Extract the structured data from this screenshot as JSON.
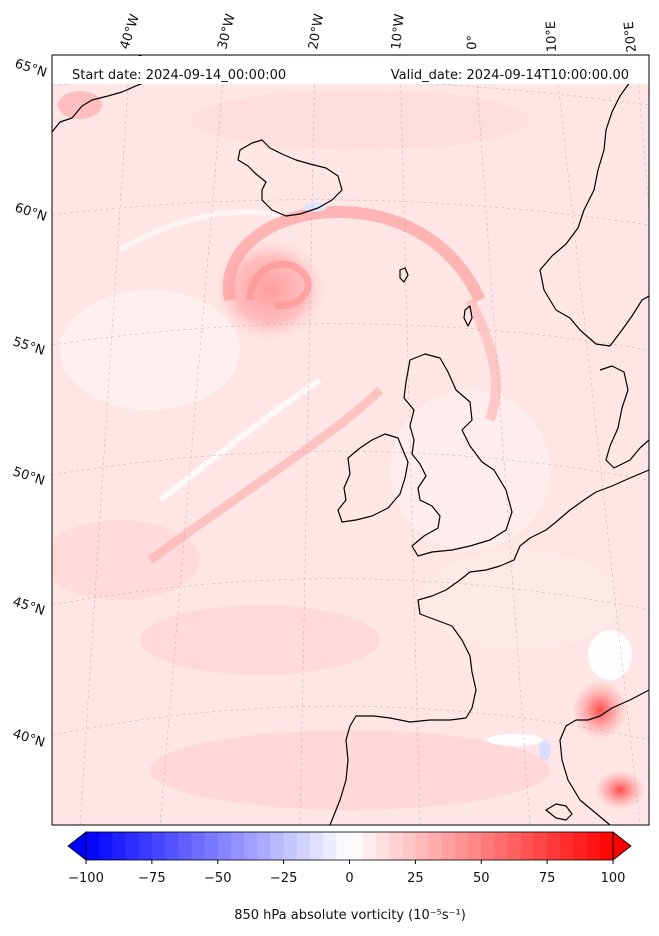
{
  "header": {
    "start": "Start date: 2024-09-14_00:00:00",
    "valid": "Valid_date: 2024-09-14T10:00:00.00"
  },
  "map": {
    "projection": "Lambert conformal (North Atlantic / Western Europe)",
    "lon_labels": [
      "40°W",
      "30°W",
      "20°W",
      "10°W",
      "0°",
      "10°E",
      "20°E"
    ],
    "lat_labels": [
      "65°N",
      "60°N",
      "55°N",
      "50°N",
      "45°N",
      "40°N"
    ],
    "gridlines": true
  },
  "colorbar": {
    "label": "850 hPa absolute vorticity (10⁻⁵s⁻¹)",
    "ticks": [
      "−100",
      "−75",
      "−50",
      "−25",
      "0",
      "25",
      "50",
      "75",
      "100"
    ],
    "min": -100,
    "max": 100,
    "extend": "both",
    "cmap": "bwr",
    "colors": {
      "neg": "#0000ff",
      "zero": "#ffffff",
      "pos": "#ff0000"
    }
  },
  "colors": {
    "land_outline": "#000000",
    "background_field": "#ffe6e6"
  }
}
